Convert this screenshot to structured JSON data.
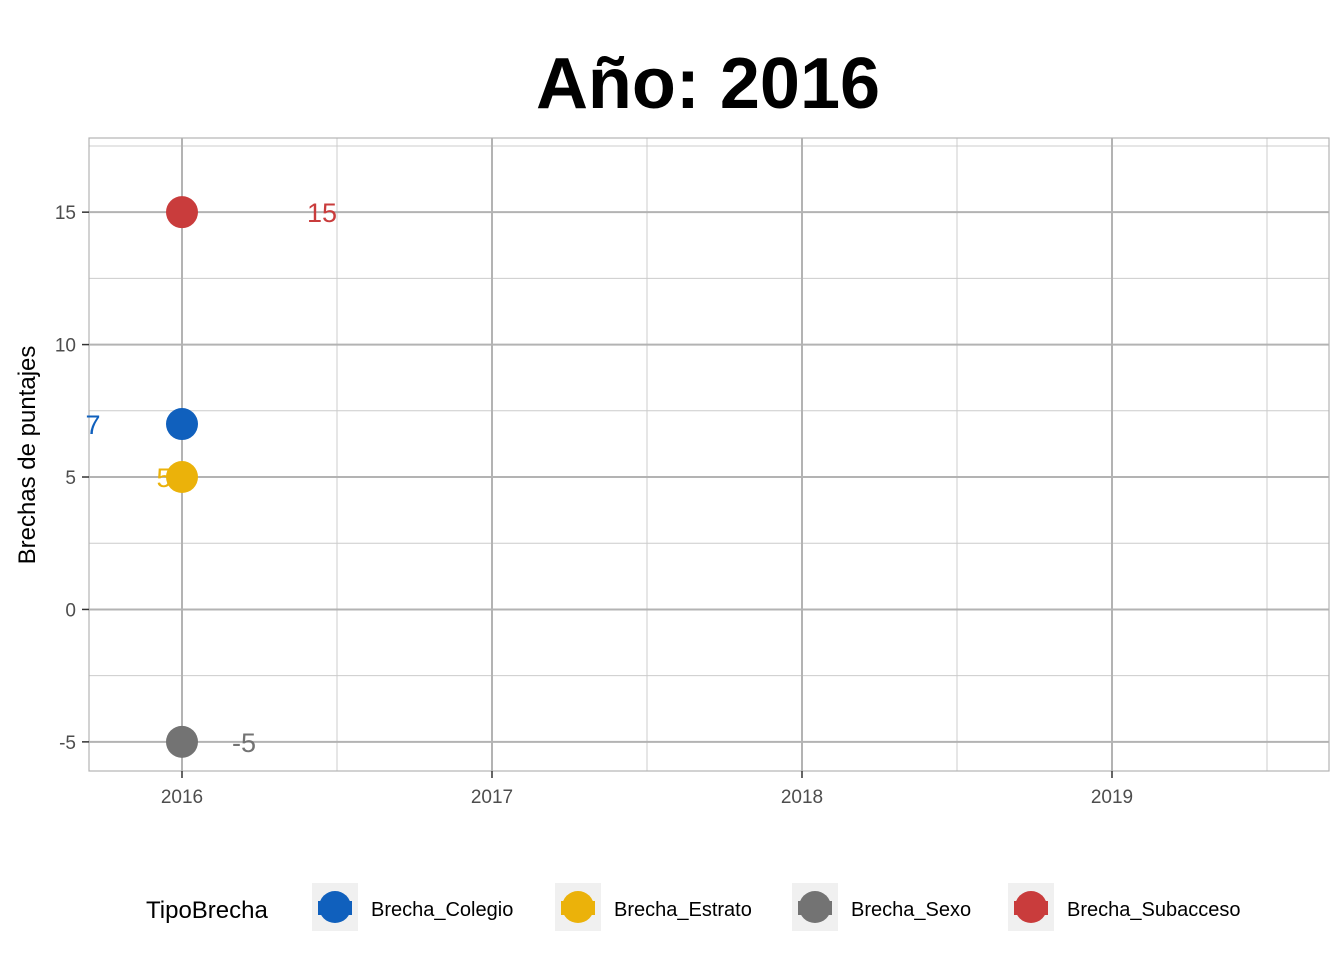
{
  "chart_data": {
    "type": "scatter",
    "title": "Año: 2016",
    "xlabel": "",
    "ylabel": "Brechas de puntajes",
    "x_ticks": [
      "2016",
      "2017",
      "2018",
      "2019"
    ],
    "y_ticks": [
      "-5",
      "0",
      "5",
      "10",
      "15"
    ],
    "xlim": [
      2015.7,
      2019.7
    ],
    "ylim": [
      -6.1,
      17.8
    ],
    "grid": true,
    "legend_position": "bottom",
    "legend_title": "TipoBrecha",
    "series": [
      {
        "name": "Brecha_Colegio",
        "color": "#1060bd",
        "points": [
          {
            "x": 2016,
            "y": 7,
            "label": "7"
          }
        ]
      },
      {
        "name": "Brecha_Estrato",
        "color": "#ebb20a",
        "points": [
          {
            "x": 2016,
            "y": 5,
            "label": "5"
          }
        ]
      },
      {
        "name": "Brecha_Sexo",
        "color": "#737373",
        "points": [
          {
            "x": 2016,
            "y": -5,
            "label": "-5"
          }
        ]
      },
      {
        "name": "Brecha_Subacceso",
        "color": "#c93c3c",
        "points": [
          {
            "x": 2016,
            "y": 15,
            "label": "15"
          }
        ]
      }
    ]
  }
}
